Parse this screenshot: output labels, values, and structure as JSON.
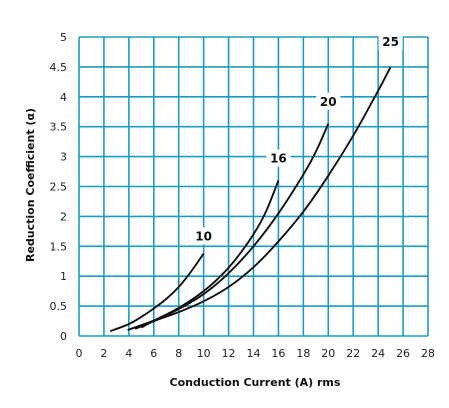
{
  "chart_data": {
    "type": "line",
    "title": "",
    "xlabel": "Conduction Current (A) rms",
    "ylabel": "Reduction Coefficient (α)",
    "xlim": [
      0,
      28
    ],
    "ylim": [
      0,
      5
    ],
    "xticks": [
      0,
      2,
      4,
      6,
      8,
      10,
      12,
      14,
      16,
      18,
      20,
      22,
      24,
      26,
      28
    ],
    "yticks": [
      0,
      0.5,
      1,
      1.5,
      2,
      2.5,
      3,
      3.5,
      4,
      4.5,
      5
    ],
    "ytick_labels": [
      "0",
      "0.5",
      "1",
      "1.5",
      "2",
      "2.5",
      "3",
      "3.5",
      "4",
      "4.5",
      "5"
    ],
    "grid": true,
    "grid_color": "#1a9cc0",
    "line_color": "#111111",
    "series": [
      {
        "name": "10",
        "label_at": [
          10,
          1.65
        ],
        "x": [
          2.5,
          4,
          5,
          6,
          7,
          8,
          9,
          10
        ],
        "y": [
          0.08,
          0.2,
          0.32,
          0.46,
          0.62,
          0.82,
          1.08,
          1.38
        ]
      },
      {
        "name": "16",
        "label_at": [
          16,
          2.95
        ],
        "x": [
          3.9,
          5,
          6,
          7,
          8,
          9,
          10,
          11,
          12,
          13,
          14,
          15,
          16
        ],
        "y": [
          0.1,
          0.18,
          0.26,
          0.36,
          0.47,
          0.6,
          0.75,
          0.93,
          1.14,
          1.4,
          1.7,
          2.08,
          2.6
        ]
      },
      {
        "name": "20",
        "label_at": [
          20,
          3.9
        ],
        "x": [
          4.5,
          6,
          8,
          10,
          12,
          14,
          16,
          18,
          19,
          20
        ],
        "y": [
          0.12,
          0.25,
          0.45,
          0.7,
          1.05,
          1.5,
          2.05,
          2.7,
          3.08,
          3.55
        ]
      },
      {
        "name": "25",
        "label_at": [
          25,
          4.9
        ],
        "x": [
          5,
          6,
          8,
          10,
          12,
          14,
          16,
          18,
          20,
          22,
          24,
          25
        ],
        "y": [
          0.14,
          0.25,
          0.4,
          0.58,
          0.82,
          1.15,
          1.58,
          2.08,
          2.68,
          3.35,
          4.1,
          4.5
        ]
      }
    ]
  }
}
